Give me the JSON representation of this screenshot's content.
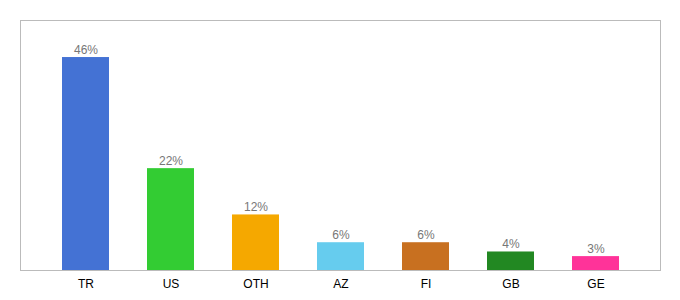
{
  "chart_data": {
    "type": "bar",
    "categories": [
      "TR",
      "US",
      "OTH",
      "AZ",
      "FI",
      "GB",
      "GE"
    ],
    "values": [
      46,
      22,
      12,
      6,
      6,
      4,
      3
    ],
    "value_labels": [
      "46%",
      "22%",
      "12%",
      "6%",
      "6%",
      "4%",
      "3%"
    ],
    "colors": [
      "#4472d4",
      "#33cc33",
      "#f5a800",
      "#66ccee",
      "#c87020",
      "#228822",
      "#ff3399"
    ],
    "ylim": [
      0,
      54
    ],
    "data_labels": true,
    "tick_labels": "x",
    "grid": false
  }
}
